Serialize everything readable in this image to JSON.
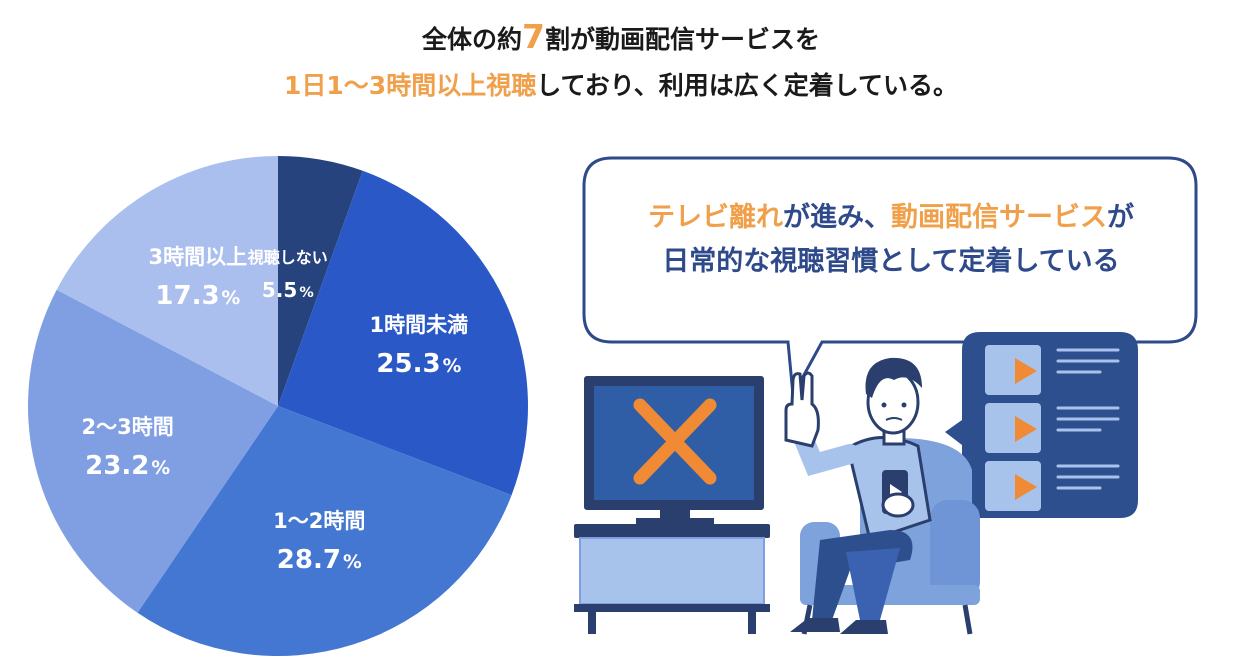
{
  "headline": {
    "line1_pre": "全体の約",
    "line1_num": "7",
    "line1_post": "割が動画配信サービスを",
    "line2_highlight": "1日1〜3時間以上視聴",
    "line2_post": "しており、利用は広く定着している。"
  },
  "bubble": {
    "part1_highlight": "テレビ離れ",
    "part2": "が進み、",
    "part3_highlight": "動画配信サービス",
    "part4": "が",
    "line2": "日常的な視聴習慣として定着している"
  },
  "colors": {
    "highlight": "#f0a04b",
    "bubble_text": "#2e4a8a",
    "slice_none": "#26437e",
    "slice_lt1": "#2b58c7",
    "slice_1to2": "#4477d2",
    "slice_2to3": "#7f9fe2",
    "slice_3plus": "#abbfef"
  },
  "chart_data": {
    "type": "pie",
    "slices": [
      {
        "label": "視聴しない",
        "value": 5.5,
        "unit": "%",
        "color": "#26437e"
      },
      {
        "label": "1時間未満",
        "value": 25.3,
        "unit": "%",
        "color": "#2b58c7"
      },
      {
        "label": "1〜2時間",
        "value": 28.7,
        "unit": "%",
        "color": "#4477d2"
      },
      {
        "label": "2〜3時間",
        "value": 23.2,
        "unit": "%",
        "color": "#7f9fe2"
      },
      {
        "label": "3時間以上",
        "value": 17.3,
        "unit": "%",
        "color": "#abbfef"
      }
    ],
    "start": "12 o'clock",
    "direction": "clockwise",
    "legend": "none"
  },
  "illustration_icons": [
    "tv-crossed-icon",
    "play-button-icon",
    "smartphone-icon",
    "hand-stop-icon"
  ]
}
